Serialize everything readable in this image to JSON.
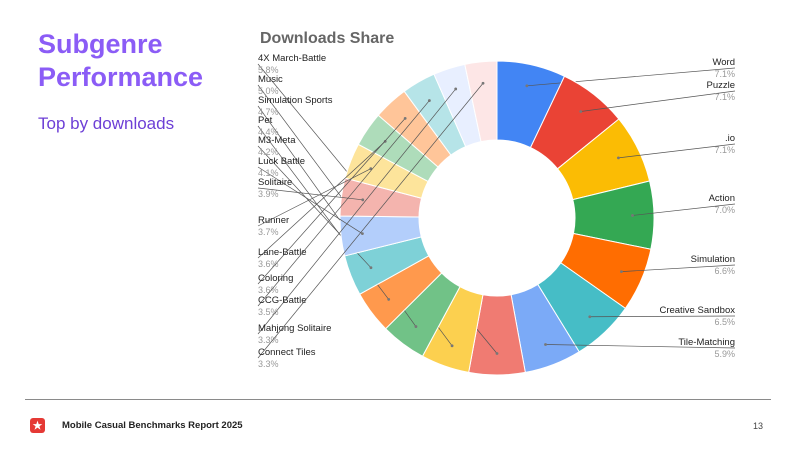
{
  "slide": {
    "title": "Subgenre Performance",
    "subtitle": "Top by downloads"
  },
  "footer": {
    "report_name": "Mobile Casual Benchmarks Report 2025",
    "page_number": "13",
    "logo_icon": "star-icon",
    "logo_color": "#e53935"
  },
  "chart_data": {
    "type": "pie",
    "style": "donut",
    "title": "Downloads Share",
    "unit": "%",
    "slices": [
      {
        "label": "Word",
        "value": 7.1,
        "display": "7.1%",
        "color": "#4285f4"
      },
      {
        "label": "Puzzle",
        "value": 7.1,
        "display": "7.1%",
        "color": "#ea4335"
      },
      {
        "label": ".io",
        "value": 7.1,
        "display": "7.1%",
        "color": "#fbbc04"
      },
      {
        "label": "Action",
        "value": 7.0,
        "display": "7.0%",
        "color": "#34a853"
      },
      {
        "label": "Simulation",
        "value": 6.6,
        "display": "6.6%",
        "color": "#ff6d01"
      },
      {
        "label": "Creative Sandbox",
        "value": 6.5,
        "display": "6.5%",
        "color": "#46bdc6"
      },
      {
        "label": "Tile-Matching",
        "value": 5.9,
        "display": "5.9%",
        "color": "#7baaf7"
      },
      {
        "label": "4X March-Battle",
        "value": 5.8,
        "display": "5.8%",
        "color": "#f07b72"
      },
      {
        "label": "Music",
        "value": 5.0,
        "display": "5.0%",
        "color": "#fcd04f"
      },
      {
        "label": "Simulation Sports",
        "value": 4.7,
        "display": "4.7%",
        "color": "#71c287"
      },
      {
        "label": "Pet",
        "value": 4.4,
        "display": "4.4%",
        "color": "#ff994d"
      },
      {
        "label": "M3-Meta",
        "value": 4.2,
        "display": "4.2%",
        "color": "#7ed1d7"
      },
      {
        "label": "Luck Battle",
        "value": 4.1,
        "display": "4.1%",
        "color": "#b3cefb"
      },
      {
        "label": "Solitaire",
        "value": 3.9,
        "display": "3.9%",
        "color": "#f4b4ae"
      },
      {
        "label": "Runner",
        "value": 3.7,
        "display": "3.7%",
        "color": "#fde49b"
      },
      {
        "label": "Lane-Battle",
        "value": 3.6,
        "display": "3.6%",
        "color": "#aedcba"
      },
      {
        "label": "Coloring",
        "value": 3.6,
        "display": "3.6%",
        "color": "#ffc599"
      },
      {
        "label": "CCG-Battle",
        "value": 3.5,
        "display": "3.5%",
        "color": "#b6e4e8"
      },
      {
        "label": "Mahjong Solitaire",
        "value": 3.3,
        "display": "3.3%",
        "color": "#e8efff"
      },
      {
        "label": "Connect Tiles",
        "value": 3.3,
        "display": "3.3%",
        "color": "#fde6e6"
      }
    ]
  }
}
